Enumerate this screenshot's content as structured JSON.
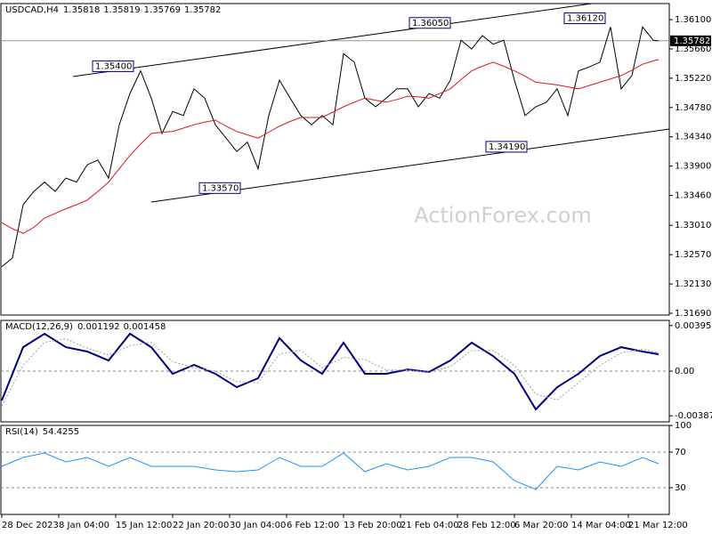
{
  "chart_data": [
    {
      "type": "line",
      "title": "USDCAD,H4",
      "ohlc": [
        1.35818,
        1.35819,
        1.35769,
        1.35782
      ],
      "watermark": "ActionForex.com",
      "ylim": [
        1.31663,
        1.36341
      ],
      "yticks": [
        {
          "value": 1.361,
          "label": "1.36100"
        },
        {
          "value": 1.3566,
          "label": "1.35660"
        },
        {
          "value": 1.3522,
          "label": "1.35220"
        },
        {
          "value": 1.3478,
          "label": "1.34780"
        },
        {
          "value": 1.3434,
          "label": "1.34340"
        },
        {
          "value": 1.339,
          "label": "1.33900"
        },
        {
          "value": 1.3346,
          "label": "1.33460"
        },
        {
          "value": 1.3301,
          "label": "1.33010"
        },
        {
          "value": 1.3257,
          "label": "1.32570"
        },
        {
          "value": 1.3213,
          "label": "1.32130"
        },
        {
          "value": 1.3169,
          "label": "1.31690"
        }
      ],
      "x": [
        0,
        6,
        12,
        18,
        24,
        30,
        36,
        42,
        48,
        54,
        60,
        66,
        72,
        78,
        84,
        90,
        96,
        102,
        108,
        114,
        120,
        126,
        132,
        138,
        144,
        150,
        156,
        162,
        168,
        174,
        180,
        186,
        192,
        198,
        204,
        210,
        216,
        222,
        228,
        234,
        240,
        246,
        252,
        258,
        264,
        270,
        276,
        282,
        288,
        294,
        300,
        306,
        312,
        318,
        324,
        330,
        336,
        342,
        348,
        354,
        360,
        366,
        369
      ],
      "series": [
        {
          "name": "USDCAD",
          "color": "#000000",
          "values": [
            1.3239,
            1.3252,
            1.3332,
            1.3352,
            1.3366,
            1.3352,
            1.3372,
            1.3366,
            1.3392,
            1.3399,
            1.3372,
            1.3452,
            1.3499,
            1.3533,
            1.3492,
            1.3439,
            1.3472,
            1.3466,
            1.3506,
            1.3492,
            1.3452,
            1.3432,
            1.3412,
            1.3426,
            1.3386,
            1.3466,
            1.3519,
            1.3492,
            1.3466,
            1.3452,
            1.3466,
            1.3452,
            1.3559,
            1.3546,
            1.3492,
            1.3479,
            1.3492,
            1.3506,
            1.3506,
            1.3479,
            1.3499,
            1.3492,
            1.3519,
            1.3579,
            1.3566,
            1.3586,
            1.3573,
            1.3579,
            1.3519,
            1.3466,
            1.3479,
            1.3486,
            1.3506,
            1.3466,
            1.3533,
            1.3539,
            1.3546,
            1.3599,
            1.3506,
            1.3526,
            1.3599,
            1.3579,
            1.3578
          ]
        },
        {
          "name": "MA",
          "color": "#e0141c",
          "values": [
            1.3305,
            1.3296,
            1.3289,
            1.3298,
            1.3312,
            1.3319,
            1.3326,
            1.3332,
            1.3339,
            1.3352,
            1.3366,
            1.3386,
            1.3406,
            1.3423,
            1.3439,
            1.3441,
            1.3442,
            1.3447,
            1.3452,
            1.3456,
            1.3459,
            1.345,
            1.3442,
            1.3437,
            1.3432,
            1.3441,
            1.345,
            1.3457,
            1.3463,
            1.3463,
            1.3463,
            1.3471,
            1.3479,
            1.3486,
            1.3492,
            1.3489,
            1.3486,
            1.349,
            1.3495,
            1.3494,
            1.3492,
            1.3499,
            1.3506,
            1.352,
            1.3533,
            1.354,
            1.3546,
            1.354,
            1.3533,
            1.3525,
            1.3516,
            1.3514,
            1.3512,
            1.3509,
            1.3506,
            1.3511,
            1.3516,
            1.3521,
            1.3526,
            1.3534,
            1.3543,
            1.3548,
            1.355
          ]
        }
      ],
      "annotations": [
        {
          "label": "1.35400",
          "value": 1.354,
          "x": 74
        },
        {
          "label": "1.36050",
          "value": 1.3605,
          "x": 252
        },
        {
          "label": "1.36120",
          "value": 1.3612,
          "x": 339
        },
        {
          "label": "1.34190",
          "value": 1.3419,
          "x": 295
        },
        {
          "label": "1.33570",
          "value": 1.3357,
          "x": 134
        }
      ]
    },
    {
      "type": "line",
      "title": "MACD(12,26,9)",
      "readings": [
        0.001192,
        0.001458
      ],
      "zero_line": true,
      "ylim": [
        -0.0044,
        0.0044
      ],
      "yticks": [
        0.00395,
        {
          "value": 0,
          "label": "0.00"
        },
        -0.003874
      ],
      "x": [
        0,
        12,
        24,
        36,
        48,
        60,
        72,
        84,
        96,
        108,
        120,
        132,
        144,
        156,
        168,
        180,
        192,
        204,
        216,
        228,
        240,
        252,
        264,
        276,
        288,
        300,
        312,
        324,
        336,
        348,
        360,
        369
      ],
      "series": [
        {
          "name": "MACD",
          "color": "#000080",
          "values": [
            -0.00255,
            0.00208,
            0.00324,
            0.00208,
            0.0017,
            0.00093,
            0.00324,
            0.00208,
            -0.00023,
            0.00054,
            -0.00023,
            -0.00139,
            -0.00062,
            0.00286,
            0.00093,
            -0.00023,
            0.00247,
            -0.00023,
            -0.00023,
            0.00015,
            -8e-05,
            0.00093,
            0.00247,
            0.00131,
            -0.00023,
            -0.00332,
            -0.00139,
            -0.00023,
            0.00131,
            0.00208,
            0.0017,
            0.00147
          ]
        },
        {
          "name": "Signal",
          "color": "#a0a0a0",
          "values": [
            -0.003,
            0.0005,
            0.0025,
            0.0028,
            0.002,
            0.0014,
            0.0022,
            0.0025,
            0.0008,
            0.0003,
            0,
            -0.0009,
            -0.001,
            0.0015,
            0.0018,
            0.0003,
            0.0012,
            0.001,
            0.0001,
            0.0001,
            -0.0001,
            0.0004,
            0.0018,
            0.0018,
            0.0005,
            -0.002,
            -0.0025,
            -0.001,
            0.0005,
            0.0016,
            0.0019,
            0.0016
          ]
        }
      ]
    },
    {
      "type": "line",
      "title": "RSI(14)",
      "readings": [
        54.4255
      ],
      "level_lines": true,
      "ylim": [
        0,
        100
      ],
      "yticks": [
        100,
        70,
        30
      ],
      "xlim": [
        -1,
        375
      ],
      "xticks": [
        {
          "value": 0,
          "label": "28 Dec 2023"
        },
        {
          "value": 32,
          "label": "8 Jan 04:00"
        },
        {
          "value": 64,
          "label": "15 Jan 12:00"
        },
        {
          "value": 96,
          "label": "22 Jan 20:00"
        },
        {
          "value": 128,
          "label": "30 Jan 04:00"
        },
        {
          "value": 160,
          "label": "6 Feb 12:00"
        },
        {
          "value": 192,
          "label": "13 Feb 20:00"
        },
        {
          "value": 224,
          "label": "21 Feb 04:00"
        },
        {
          "value": 256,
          "label": "28 Feb 12:00"
        },
        {
          "value": 288,
          "label": "6 Mar 20:00"
        },
        {
          "value": 320,
          "label": "14 Mar 04:00"
        },
        {
          "value": 352,
          "label": "21 Mar 12:00"
        }
      ],
      "x": [
        0,
        12,
        24,
        36,
        48,
        60,
        72,
        84,
        96,
        108,
        120,
        132,
        144,
        156,
        168,
        180,
        192,
        204,
        216,
        228,
        240,
        252,
        264,
        276,
        288,
        300,
        312,
        324,
        336,
        348,
        360,
        369
      ],
      "series": [
        {
          "name": "RSI",
          "color": "#1e90ff",
          "values": [
            54,
            64,
            69,
            59,
            64,
            54,
            64,
            54,
            54,
            54,
            50,
            48,
            50,
            64,
            54,
            54,
            69,
            48,
            57,
            50,
            54,
            64,
            64,
            59,
            38,
            28,
            54,
            50,
            59,
            54,
            64,
            57
          ]
        }
      ]
    }
  ]
}
